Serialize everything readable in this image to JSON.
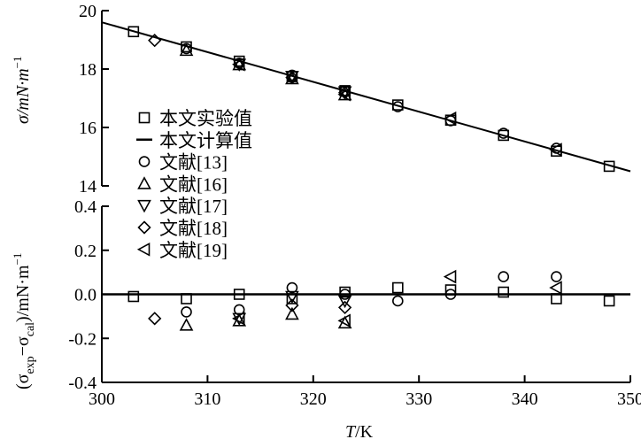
{
  "chart_data": [
    {
      "type": "scatter",
      "panel": "top",
      "ylabel": "σ/mN·m",
      "ylabel_sup": "−1",
      "ylim": [
        14,
        20
      ],
      "yticks": [
        "14",
        "16",
        "18",
        "20"
      ],
      "xlim": [
        300,
        350
      ],
      "line": {
        "name": "本文计算值",
        "x": [
          300,
          350
        ],
        "y": [
          19.6,
          14.5
        ]
      },
      "series": [
        {
          "name": "本文实验值",
          "marker": "square",
          "x": [
            303,
            308,
            313,
            318,
            323,
            328,
            333,
            338,
            343,
            348
          ],
          "y": [
            19.28,
            18.76,
            18.27,
            17.74,
            17.26,
            16.77,
            16.25,
            15.73,
            15.19,
            14.67
          ]
        },
        {
          "name": "文献[13]",
          "marker": "circle",
          "x": [
            308,
            313,
            318,
            323,
            328,
            333,
            338,
            343
          ],
          "y": [
            18.7,
            18.2,
            17.79,
            17.25,
            16.71,
            16.23,
            15.8,
            15.29
          ]
        },
        {
          "name": "文献[16]",
          "marker": "triangle-up",
          "x": [
            308,
            313,
            318,
            323
          ],
          "y": [
            18.64,
            18.15,
            17.67,
            17.12
          ]
        },
        {
          "name": "文献[17]",
          "marker": "triangle-down",
          "x": [
            313,
            318,
            323
          ],
          "y": [
            18.16,
            17.75,
            17.22
          ]
        },
        {
          "name": "文献[18]",
          "marker": "diamond",
          "x": [
            305,
            318,
            323
          ],
          "y": [
            18.98,
            17.71,
            17.19
          ]
        },
        {
          "name": "文献[19]",
          "marker": "triangle-left",
          "x": [
            313,
            323,
            333,
            343
          ],
          "y": [
            18.16,
            17.13,
            16.31,
            15.24
          ]
        }
      ]
    },
    {
      "type": "scatter",
      "panel": "bottom",
      "ylabel_open": "(σ",
      "ylabel_sub1": "exp",
      "ylabel_mid": "−σ",
      "ylabel_sub2": "cal",
      "ylabel_close": ")/mN·m",
      "ylabel_sup": "−1",
      "xlabel_italic": "T",
      "xlabel_rest": "/K",
      "ylim": [
        -0.4,
        0.4
      ],
      "yticks": [
        "-0.4",
        "-0.2",
        "0.0",
        "0.2",
        "0.4"
      ],
      "xlim": [
        300,
        350
      ],
      "xticks": [
        "300",
        "310",
        "320",
        "330",
        "340",
        "350"
      ],
      "series": [
        {
          "name": "本文实验值",
          "marker": "square",
          "x": [
            303,
            308,
            313,
            318,
            323,
            328,
            333,
            338,
            343,
            348
          ],
          "y": [
            -0.01,
            -0.02,
            0.0,
            -0.02,
            0.01,
            0.03,
            0.02,
            0.01,
            -0.02,
            -0.03
          ]
        },
        {
          "name": "文献[13]",
          "marker": "circle",
          "x": [
            308,
            313,
            318,
            323,
            328,
            333,
            338,
            343
          ],
          "y": [
            -0.08,
            -0.07,
            0.03,
            0.0,
            -0.03,
            0.0,
            0.08,
            0.08
          ]
        },
        {
          "name": "文献[16]",
          "marker": "triangle-up",
          "x": [
            308,
            313,
            318,
            323
          ],
          "y": [
            -0.14,
            -0.12,
            -0.09,
            -0.13
          ]
        },
        {
          "name": "文献[17]",
          "marker": "triangle-down",
          "x": [
            313,
            318,
            323
          ],
          "y": [
            -0.11,
            -0.01,
            -0.03
          ]
        },
        {
          "name": "文献[18]",
          "marker": "diamond",
          "x": [
            305,
            318,
            323
          ],
          "y": [
            -0.11,
            -0.05,
            -0.06
          ]
        },
        {
          "name": "文献[19]",
          "marker": "triangle-left",
          "x": [
            313,
            323,
            333,
            343
          ],
          "y": [
            -0.11,
            -0.12,
            0.08,
            0.03
          ]
        }
      ]
    }
  ],
  "legend": {
    "placement": "center-left",
    "items": [
      {
        "label": "本文实验值",
        "marker": "square"
      },
      {
        "label": "本文计算值",
        "marker": "line"
      },
      {
        "label": "文献[13]",
        "marker": "circle"
      },
      {
        "label": "文献[16]",
        "marker": "triangle-up"
      },
      {
        "label": "文献[17]",
        "marker": "triangle-down"
      },
      {
        "label": "文献[18]",
        "marker": "diamond"
      },
      {
        "label": "文献[19]",
        "marker": "triangle-left"
      }
    ]
  },
  "colors": {
    "ink": "#000000",
    "background": "#ffffff"
  }
}
